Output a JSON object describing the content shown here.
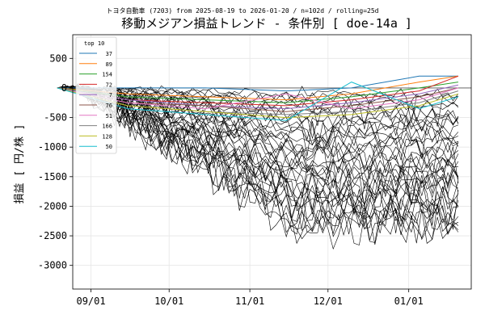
{
  "chart_data": {
    "type": "line",
    "suptitle": "トヨタ自動車 (7203) from 2025-08-19 to 2026-01-20 / n=102d / rolling=25d",
    "title": "移動メジアン損益トレンド - 条件別 [ doe-14a ]",
    "xlabel": "",
    "ylabel": "損益 [ 円/株 ]",
    "x_start": "2025-08-19",
    "x_end": "2026-01-20",
    "xlim": [
      "2025-08-25",
      "2026-01-25"
    ],
    "ylim": [
      -3400,
      900
    ],
    "x_ticks": [
      {
        "date": "2025-09-01",
        "label": "09/01"
      },
      {
        "date": "2025-10-01",
        "label": "10/01"
      },
      {
        "date": "2025-11-01",
        "label": "11/01"
      },
      {
        "date": "2025-12-01",
        "label": "12/01"
      },
      {
        "date": "2026-01-01",
        "label": "01/01"
      }
    ],
    "y_ticks": [
      500,
      0,
      -500,
      -1000,
      -1500,
      -2000,
      -2500,
      -3000
    ],
    "grid": true,
    "zero_line": true,
    "legend": {
      "title": "top 10",
      "placement": "top-left",
      "entries": [
        {
          "label": "37",
          "color": "#1f77b4"
        },
        {
          "label": "89",
          "color": "#ff7f0e"
        },
        {
          "label": "154",
          "color": "#2ca02c"
        },
        {
          "label": "72",
          "color": "#d62728"
        },
        {
          "label": "7",
          "color": "#9467bd"
        },
        {
          "label": "76",
          "color": "#8c564b"
        },
        {
          "label": "51",
          "color": "#e377c2"
        },
        {
          "label": "166",
          "color": "#7f7f7f"
        },
        {
          "label": "128",
          "color": "#bcbd22"
        },
        {
          "label": "50",
          "color": "#17becf"
        }
      ]
    },
    "top_series": [
      {
        "name": "37",
        "color": "#1f77b4",
        "x": [
          "2025-08-19",
          "2025-09-15",
          "2025-10-15",
          "2025-11-15",
          "2025-12-10",
          "2026-01-05",
          "2026-01-20"
        ],
        "y": [
          0,
          0,
          0,
          -50,
          0,
          200,
          200
        ]
      },
      {
        "name": "89",
        "color": "#ff7f0e",
        "x": [
          "2025-08-19",
          "2025-09-15",
          "2025-10-15",
          "2025-11-15",
          "2025-12-10",
          "2026-01-05",
          "2026-01-20"
        ],
        "y": [
          0,
          -100,
          -150,
          -200,
          -100,
          100,
          200
        ]
      },
      {
        "name": "154",
        "color": "#2ca02c",
        "x": [
          "2025-08-19",
          "2025-09-15",
          "2025-10-15",
          "2025-11-15",
          "2025-12-10",
          "2026-01-05",
          "2026-01-20"
        ],
        "y": [
          0,
          -150,
          -200,
          -250,
          -150,
          0,
          100
        ]
      },
      {
        "name": "72",
        "color": "#d62728",
        "x": [
          "2025-08-19",
          "2025-09-15",
          "2025-10-15",
          "2025-11-15",
          "2025-12-10",
          "2026-01-05",
          "2026-01-20"
        ],
        "y": [
          0,
          -200,
          -250,
          -300,
          -200,
          -50,
          200
        ]
      },
      {
        "name": "7",
        "color": "#9467bd",
        "x": [
          "2025-08-19",
          "2025-09-15",
          "2025-10-15",
          "2025-11-15",
          "2025-12-10",
          "2026-01-05",
          "2026-01-20"
        ],
        "y": [
          0,
          -200,
          -300,
          -350,
          -250,
          -100,
          50
        ]
      },
      {
        "name": "76",
        "color": "#8c564b",
        "x": [
          "2025-08-19",
          "2025-09-15",
          "2025-10-15",
          "2025-11-15",
          "2025-12-10",
          "2026-01-05",
          "2026-01-20"
        ],
        "y": [
          0,
          -250,
          -300,
          -400,
          -300,
          -150,
          0
        ]
      },
      {
        "name": "51",
        "color": "#e377c2",
        "x": [
          "2025-08-19",
          "2025-09-15",
          "2025-10-15",
          "2025-11-15",
          "2025-12-10",
          "2026-01-05",
          "2026-01-20"
        ],
        "y": [
          0,
          -250,
          -350,
          -100,
          -350,
          -200,
          0
        ]
      },
      {
        "name": "166",
        "color": "#7f7f7f",
        "x": [
          "2025-08-19",
          "2025-09-15",
          "2025-10-15",
          "2025-11-15",
          "2025-12-10",
          "2026-01-05",
          "2026-01-20"
        ],
        "y": [
          0,
          -300,
          -400,
          -450,
          -400,
          -250,
          -50
        ]
      },
      {
        "name": "128",
        "color": "#bcbd22",
        "x": [
          "2025-08-19",
          "2025-09-15",
          "2025-10-15",
          "2025-11-15",
          "2025-12-10",
          "2026-01-05",
          "2026-01-20"
        ],
        "y": [
          0,
          -300,
          -400,
          -500,
          -450,
          -300,
          -100
        ]
      },
      {
        "name": "50",
        "color": "#17becf",
        "x": [
          "2025-08-19",
          "2025-09-15",
          "2025-10-15",
          "2025-11-15",
          "2025-12-10",
          "2026-01-05",
          "2026-01-20"
        ],
        "y": [
          0,
          -350,
          -450,
          -550,
          100,
          -350,
          -150
        ]
      }
    ],
    "background_series_count": 40,
    "background_color": "#000000"
  }
}
